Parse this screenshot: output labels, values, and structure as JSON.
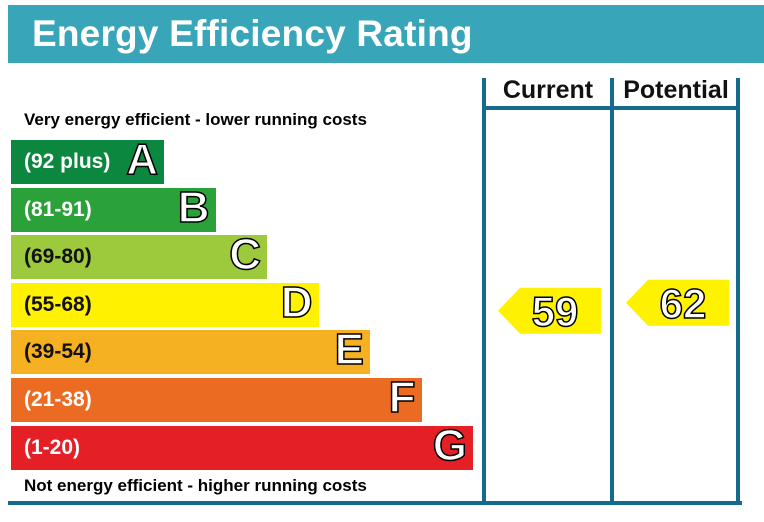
{
  "title": "Energy Efficiency Rating",
  "columns": {
    "current": "Current",
    "potential": "Potential"
  },
  "top_note": "Very energy efficient - lower running costs",
  "bottom_note": "Not energy efficient - higher running costs",
  "colors": {
    "header": "#39a5b8",
    "frame": "#156a8e",
    "marker": "#fff200"
  },
  "chart_data": {
    "type": "bar",
    "title": "Energy Efficiency Rating",
    "bands": [
      {
        "letter": "A",
        "range": "(92 plus)",
        "min": 92,
        "max": 100,
        "color": "#0c8740"
      },
      {
        "letter": "B",
        "range": "(81-91)",
        "min": 81,
        "max": 91,
        "color": "#2aa139"
      },
      {
        "letter": "C",
        "range": "(69-80)",
        "min": 69,
        "max": 80,
        "color": "#9dc93d"
      },
      {
        "letter": "D",
        "range": "(55-68)",
        "min": 55,
        "max": 68,
        "color": "#fff100"
      },
      {
        "letter": "E",
        "range": "(39-54)",
        "min": 39,
        "max": 54,
        "color": "#f5b122"
      },
      {
        "letter": "F",
        "range": "(21-38)",
        "min": 21,
        "max": 38,
        "color": "#ec6b23"
      },
      {
        "letter": "G",
        "range": "(1-20)",
        "min": 1,
        "max": 20,
        "color": "#e51f26"
      }
    ],
    "current": {
      "value": 59,
      "label": "59"
    },
    "potential": {
      "value": 62,
      "label": "62"
    }
  }
}
